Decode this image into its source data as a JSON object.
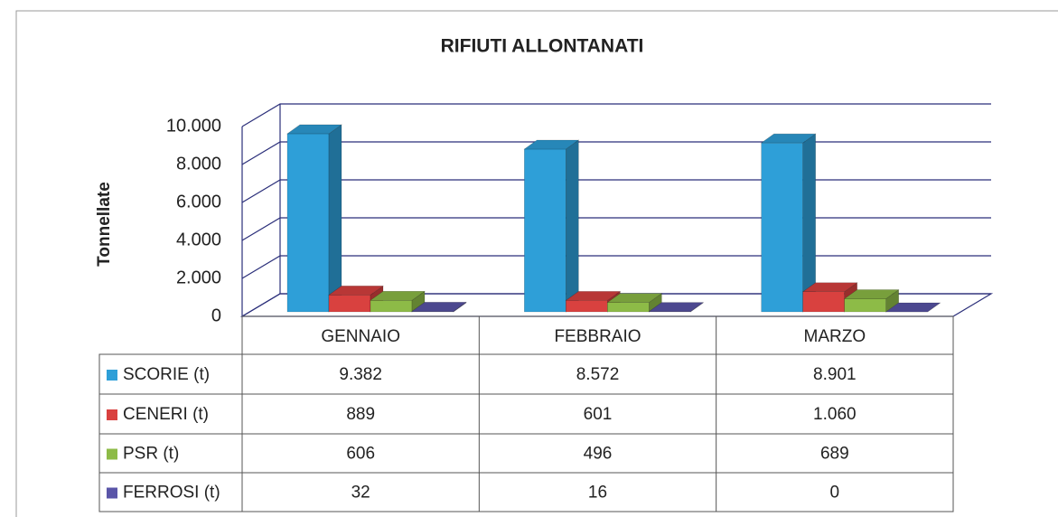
{
  "chart_data": {
    "type": "bar3d",
    "title": "RIFIUTI ALLONTANATI",
    "y_label": "Tonnellate",
    "categories": [
      "GENNAIO",
      "FEBBRAIO",
      "MARZO"
    ],
    "series": [
      {
        "name": "SCORIE (t)",
        "color": "#2e9fd8",
        "values": [
          9382,
          8572,
          8901
        ],
        "value_labels": [
          "9.382",
          "8.572",
          "8.901"
        ]
      },
      {
        "name": "CENERI (t)",
        "color": "#d9413f",
        "values": [
          889,
          601,
          1060
        ],
        "value_labels": [
          "889",
          "601",
          "1.060"
        ]
      },
      {
        "name": "PSR (t)",
        "color": "#8dbb47",
        "values": [
          606,
          496,
          689
        ],
        "value_labels": [
          "606",
          "496",
          "689"
        ]
      },
      {
        "name": "FERROSI (t)",
        "color": "#5a55a8",
        "values": [
          32,
          16,
          0
        ],
        "value_labels": [
          "32",
          "16",
          "0"
        ]
      }
    ],
    "ylim": [
      0,
      10000
    ],
    "yticks": [
      0,
      {
        "value": 2000,
        "label": "2.000"
      },
      {
        "value": 4000,
        "label": "4.000"
      },
      {
        "value": 6000,
        "label": "6.000"
      },
      {
        "value": 8000,
        "label": "8.000"
      },
      {
        "value": 10000,
        "label": "10.000"
      }
    ],
    "grid": true
  }
}
